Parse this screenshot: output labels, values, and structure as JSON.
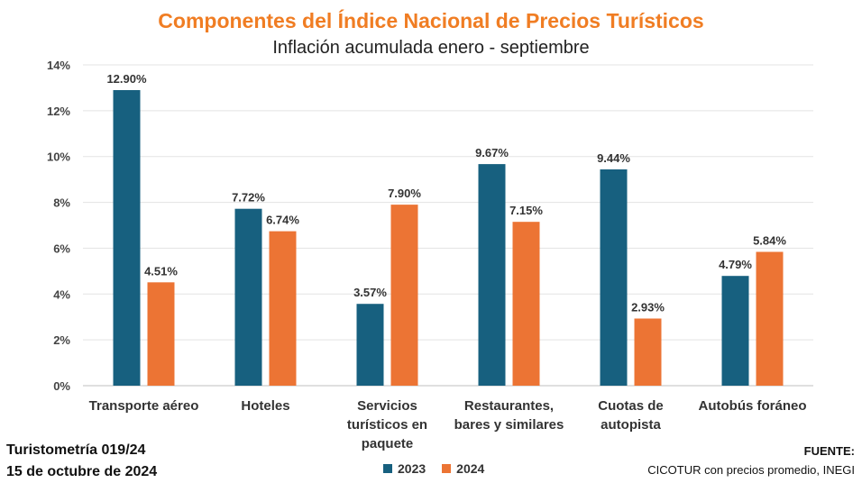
{
  "chart_data": {
    "type": "bar",
    "title": "Componentes del Índice Nacional de Precios Turísticos",
    "subtitle": "Inflación acumulada enero - septiembre",
    "categories": [
      [
        "Transporte aéreo"
      ],
      [
        "Hoteles"
      ],
      [
        "Servicios",
        "turísticos en",
        "paquete"
      ],
      [
        "Restaurantes,",
        "bares y similares"
      ],
      [
        "Cuotas de",
        "autopista"
      ],
      [
        "Autobús foráneo"
      ]
    ],
    "series": [
      {
        "name": "2023",
        "color": "#17607F",
        "values": [
          12.9,
          7.72,
          3.57,
          9.67,
          9.44,
          4.79
        ],
        "labels": [
          "12.90%",
          "7.72%",
          "3.57%",
          "9.67%",
          "9.44%",
          "4.79%"
        ]
      },
      {
        "name": "2024",
        "color": "#EC7434",
        "values": [
          4.51,
          6.74,
          7.9,
          7.15,
          2.93,
          5.84
        ],
        "labels": [
          "4.51%",
          "6.74%",
          "7.90%",
          "7.15%",
          "2.93%",
          "5.84%"
        ]
      }
    ],
    "ylim": [
      0,
      14
    ],
    "yticks": [
      0,
      2,
      4,
      6,
      8,
      10,
      12,
      14
    ],
    "ytick_labels": [
      "0%",
      "2%",
      "4%",
      "6%",
      "8%",
      "10%",
      "12%",
      "14%"
    ],
    "grid": true,
    "legend_position": "bottom"
  },
  "footer": {
    "report": "Turistometría 019/24",
    "date": "15 de octubre de 2024",
    "source_label": "FUENTE:",
    "source_text": "CICOTUR con precios promedio, INEGI"
  }
}
